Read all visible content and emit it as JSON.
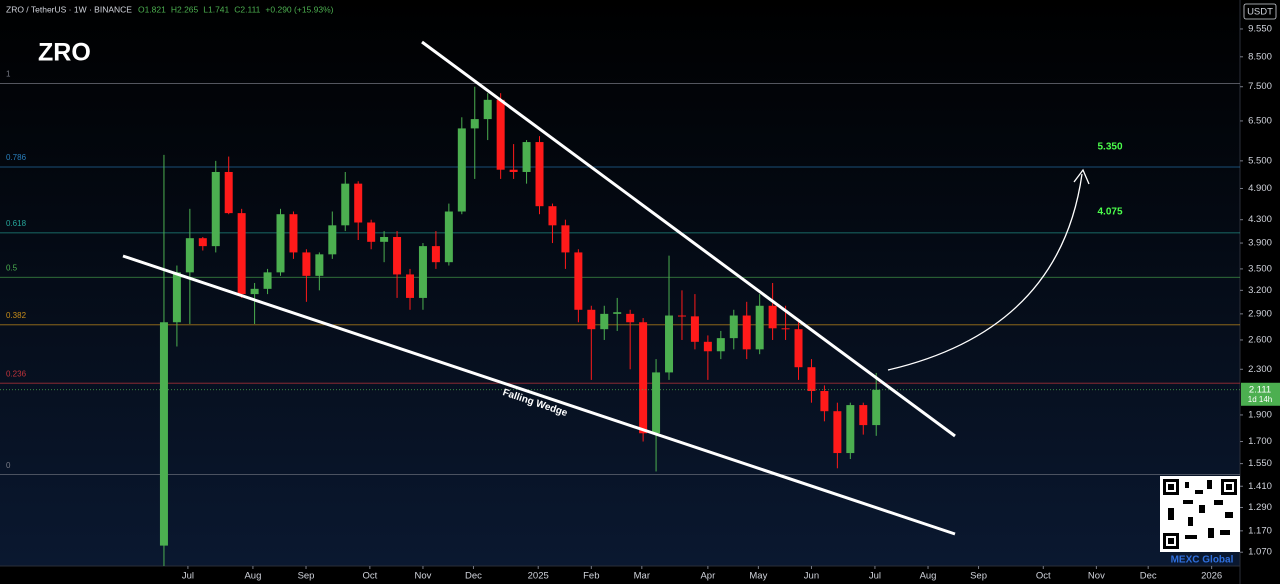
{
  "chart_data": {
    "type": "candlestick",
    "title": "ZRO",
    "legend": {
      "symbol": "ZRO / TetherUS · 1W · BINANCE",
      "values": [
        "O1.821",
        "H2.265",
        "L1.741",
        "C2.111",
        "+0.290 (+15.93%)"
      ]
    },
    "currency": "USDT",
    "up_color": "#4caf50",
    "down_color": "#ff1a1a",
    "log_scale": true,
    "x": [
      0,
      1,
      2,
      3,
      4,
      5,
      6,
      7,
      8,
      9,
      10,
      11,
      12,
      13,
      14,
      15,
      16,
      17,
      18,
      19,
      20,
      21,
      22,
      23,
      24,
      25,
      26,
      27,
      28,
      29,
      30,
      31,
      32,
      33,
      34,
      35,
      36,
      37,
      38,
      39,
      40,
      41,
      42,
      43,
      44,
      45,
      46,
      47,
      48,
      49,
      50,
      51,
      52,
      53,
      54,
      55
    ],
    "open": [
      1.1,
      2.8,
      3.45,
      3.98,
      3.85,
      5.25,
      4.42,
      3.15,
      3.22,
      3.45,
      4.4,
      3.75,
      3.4,
      3.72,
      4.2,
      5.0,
      4.25,
      3.92,
      4.0,
      3.42,
      3.1,
      3.85,
      3.6,
      4.45,
      6.3,
      6.55,
      7.1,
      5.3,
      5.25,
      5.95,
      4.55,
      4.2,
      3.75,
      2.95,
      2.72,
      2.9,
      2.9,
      2.8,
      1.76,
      2.27,
      2.88,
      2.87,
      2.58,
      2.48,
      2.62,
      2.88,
      2.5,
      3.0,
      2.73,
      2.72,
      2.32,
      2.1,
      1.93,
      1.62,
      1.98,
      1.821
    ],
    "high": [
      5.64,
      3.55,
      4.5,
      4.0,
      5.5,
      5.6,
      4.5,
      3.3,
      3.5,
      4.5,
      4.45,
      3.8,
      3.75,
      4.45,
      5.25,
      5.05,
      4.3,
      4.1,
      4.1,
      3.5,
      3.9,
      4.1,
      4.6,
      6.6,
      7.5,
      7.3,
      7.3,
      5.9,
      6.0,
      6.1,
      4.6,
      4.3,
      3.8,
      3.0,
      3.0,
      3.1,
      2.95,
      2.85,
      2.4,
      3.7,
      3.2,
      3.15,
      2.65,
      2.7,
      2.95,
      3.05,
      3.15,
      3.3,
      3.0,
      2.8,
      2.4,
      2.15,
      2.0,
      2.0,
      2.0,
      2.265
    ],
    "low": [
      1.01,
      2.53,
      2.78,
      3.78,
      3.75,
      4.4,
      3.1,
      2.78,
      3.15,
      3.4,
      3.65,
      3.05,
      3.2,
      3.65,
      4.1,
      3.95,
      3.8,
      3.6,
      3.1,
      2.95,
      2.95,
      3.5,
      3.55,
      4.4,
      5.1,
      6.0,
      5.1,
      5.1,
      5.0,
      4.4,
      3.9,
      3.5,
      2.8,
      2.2,
      2.6,
      2.7,
      2.3,
      1.7,
      1.5,
      2.2,
      2.6,
      2.5,
      2.2,
      2.4,
      2.5,
      2.4,
      2.45,
      2.6,
      2.6,
      2.2,
      2.0,
      1.85,
      1.52,
      1.58,
      1.75,
      1.741
    ],
    "close": [
      2.8,
      3.45,
      3.98,
      3.85,
      5.25,
      4.42,
      3.15,
      3.22,
      3.45,
      4.4,
      3.75,
      3.4,
      3.72,
      4.2,
      5.0,
      4.25,
      3.92,
      4.0,
      3.42,
      3.1,
      3.85,
      3.6,
      4.45,
      6.3,
      6.55,
      7.1,
      5.3,
      5.25,
      5.95,
      4.55,
      4.2,
      3.75,
      2.95,
      2.72,
      2.9,
      2.92,
      2.8,
      1.76,
      2.27,
      2.88,
      2.87,
      2.58,
      2.48,
      2.62,
      2.88,
      2.5,
      3.0,
      2.73,
      2.72,
      2.32,
      2.1,
      1.93,
      1.62,
      1.98,
      1.821,
      2.111
    ],
    "last_price_label": "2.111",
    "countdown": "1d 14h",
    "xlim": [
      -12.66,
      83.09
    ],
    "xticks": [
      {
        "value": 1.85,
        "label": "Jul"
      },
      {
        "value": 6.87,
        "label": "Aug"
      },
      {
        "value": 10.97,
        "label": "Sep"
      },
      {
        "value": 15.9,
        "label": "Oct"
      },
      {
        "value": 20.0,
        "label": "Nov"
      },
      {
        "value": 23.9,
        "label": "Dec"
      },
      {
        "value": 28.9,
        "label": "2025"
      },
      {
        "value": 33.0,
        "label": "Feb"
      },
      {
        "value": 36.9,
        "label": "Mar"
      },
      {
        "value": 42.0,
        "label": "Apr"
      },
      {
        "value": 45.9,
        "label": "May"
      },
      {
        "value": 50.0,
        "label": "Jun"
      },
      {
        "value": 54.9,
        "label": "Jul"
      },
      {
        "value": 59.0,
        "label": "Aug"
      },
      {
        "value": 62.9,
        "label": "Sep"
      },
      {
        "value": 67.9,
        "label": "Oct"
      },
      {
        "value": 72.0,
        "label": "Nov"
      },
      {
        "value": 76.0,
        "label": "Dec"
      },
      {
        "value": 80.9,
        "label": "2026"
      }
    ],
    "ylim": [
      1.01,
      10.78
    ],
    "yticks": [
      {
        "value": 9.55,
        "label": "9.550"
      },
      {
        "value": 8.5,
        "label": "8.500"
      },
      {
        "value": 7.5,
        "label": "7.500"
      },
      {
        "value": 6.5,
        "label": "6.500"
      },
      {
        "value": 5.5,
        "label": "5.500"
      },
      {
        "value": 4.9,
        "label": "4.900"
      },
      {
        "value": 4.3,
        "label": "4.300"
      },
      {
        "value": 3.9,
        "label": "3.900"
      },
      {
        "value": 3.5,
        "label": "3.500"
      },
      {
        "value": 3.2,
        "label": "3.200"
      },
      {
        "value": 2.9,
        "label": "2.900"
      },
      {
        "value": 2.6,
        "label": "2.600"
      },
      {
        "value": 2.3,
        "label": "2.300"
      },
      {
        "value": 1.9,
        "label": "1.900"
      },
      {
        "value": 1.7,
        "label": "1.700"
      },
      {
        "value": 1.55,
        "label": "1.550"
      },
      {
        "value": 1.41,
        "label": "1.410"
      },
      {
        "value": 1.29,
        "label": "1.290"
      },
      {
        "value": 1.17,
        "label": "1.170"
      },
      {
        "value": 1.07,
        "label": "1.070"
      }
    ],
    "fib_levels": [
      {
        "label": "1",
        "price": 7.6,
        "color": "#787b86"
      },
      {
        "label": "0.786",
        "price": 5.36,
        "color": "#2a7fbd"
      },
      {
        "label": "0.618",
        "price": 4.07,
        "color": "#26a69a"
      },
      {
        "label": "0.5",
        "price": 3.38,
        "color": "#4caf50"
      },
      {
        "label": "0.382",
        "price": 2.77,
        "color": "#c78d1a"
      },
      {
        "label": "0.236",
        "price": 2.17,
        "color": "#c2343b"
      },
      {
        "label": "0",
        "price": 1.48,
        "color": "#787b86"
      }
    ],
    "annotations": {
      "target_high": "5.350",
      "target_low": "4.075",
      "pattern": "Falling Wedge"
    },
    "watermark": "MEXC Global"
  }
}
